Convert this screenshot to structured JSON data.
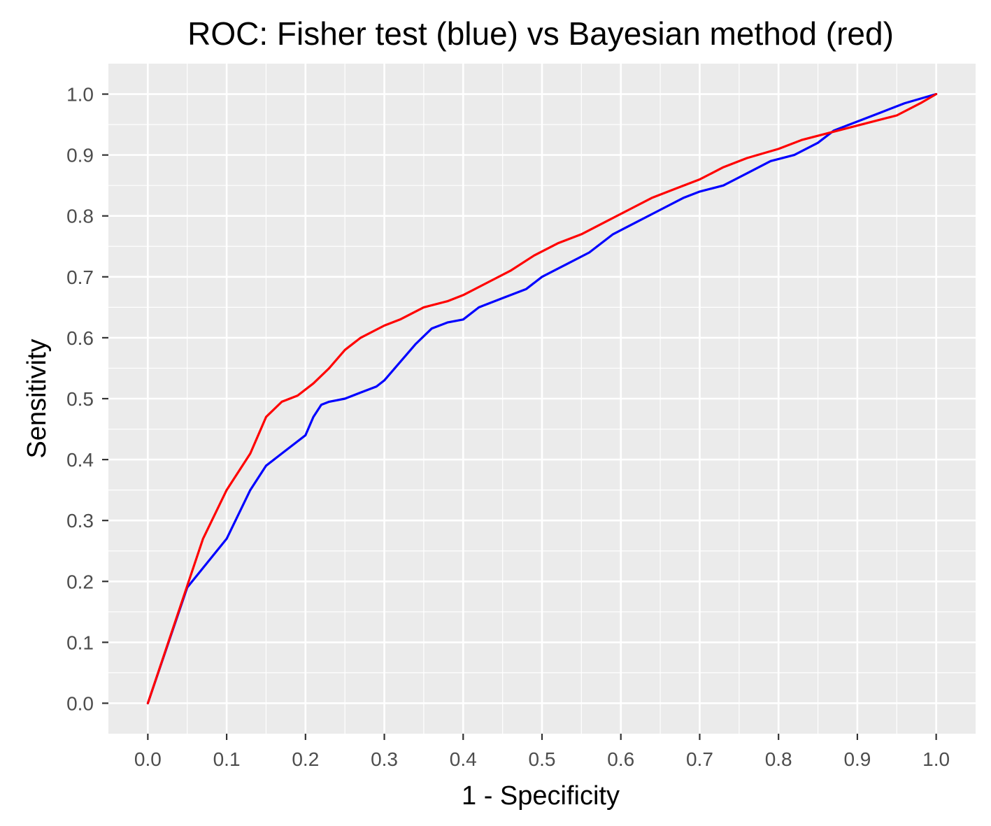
{
  "chart_data": {
    "type": "line",
    "title": "ROC: Fisher test (blue) vs Bayesian method (red)",
    "xlabel": "1 - Specificity",
    "ylabel": "Sensitivity",
    "xlim": [
      -0.05,
      1.05
    ],
    "ylim": [
      -0.05,
      1.05
    ],
    "x_ticks": [
      "0.0",
      "0.1",
      "0.2",
      "0.3",
      "0.4",
      "0.5",
      "0.6",
      "0.7",
      "0.8",
      "0.9",
      "1.0"
    ],
    "y_ticks": [
      "0.0",
      "0.1",
      "0.2",
      "0.3",
      "0.4",
      "0.5",
      "0.6",
      "0.7",
      "0.8",
      "0.9",
      "1.0"
    ],
    "grid": true,
    "panel_background": "#ebebeb",
    "series": [
      {
        "color": "#0000ff",
        "x": [
          0.0,
          0.05,
          0.1,
          0.13,
          0.15,
          0.17,
          0.19,
          0.2,
          0.21,
          0.22,
          0.23,
          0.25,
          0.27,
          0.29,
          0.3,
          0.32,
          0.34,
          0.36,
          0.38,
          0.4,
          0.42,
          0.45,
          0.48,
          0.5,
          0.53,
          0.56,
          0.59,
          0.62,
          0.65,
          0.68,
          0.7,
          0.73,
          0.76,
          0.79,
          0.82,
          0.85,
          0.87,
          0.9,
          0.93,
          0.96,
          1.0
        ],
        "y": [
          0.0,
          0.19,
          0.27,
          0.35,
          0.39,
          0.41,
          0.43,
          0.44,
          0.47,
          0.49,
          0.495,
          0.5,
          0.51,
          0.52,
          0.53,
          0.56,
          0.59,
          0.615,
          0.625,
          0.63,
          0.65,
          0.665,
          0.68,
          0.7,
          0.72,
          0.74,
          0.77,
          0.79,
          0.81,
          0.83,
          0.84,
          0.85,
          0.87,
          0.89,
          0.9,
          0.92,
          0.94,
          0.955,
          0.97,
          0.985,
          1.0
        ]
      },
      {
        "color": "#ff0000",
        "x": [
          0.0,
          0.07,
          0.1,
          0.13,
          0.15,
          0.17,
          0.19,
          0.21,
          0.23,
          0.25,
          0.27,
          0.3,
          0.32,
          0.35,
          0.38,
          0.4,
          0.43,
          0.46,
          0.49,
          0.52,
          0.55,
          0.58,
          0.61,
          0.64,
          0.67,
          0.7,
          0.73,
          0.76,
          0.8,
          0.83,
          0.86,
          0.89,
          0.92,
          0.95,
          0.98,
          1.0
        ],
        "y": [
          0.0,
          0.27,
          0.35,
          0.41,
          0.47,
          0.495,
          0.505,
          0.525,
          0.55,
          0.58,
          0.6,
          0.62,
          0.63,
          0.65,
          0.66,
          0.67,
          0.69,
          0.71,
          0.735,
          0.755,
          0.77,
          0.79,
          0.81,
          0.83,
          0.845,
          0.86,
          0.88,
          0.895,
          0.91,
          0.925,
          0.935,
          0.945,
          0.955,
          0.965,
          0.985,
          1.0
        ]
      }
    ]
  }
}
